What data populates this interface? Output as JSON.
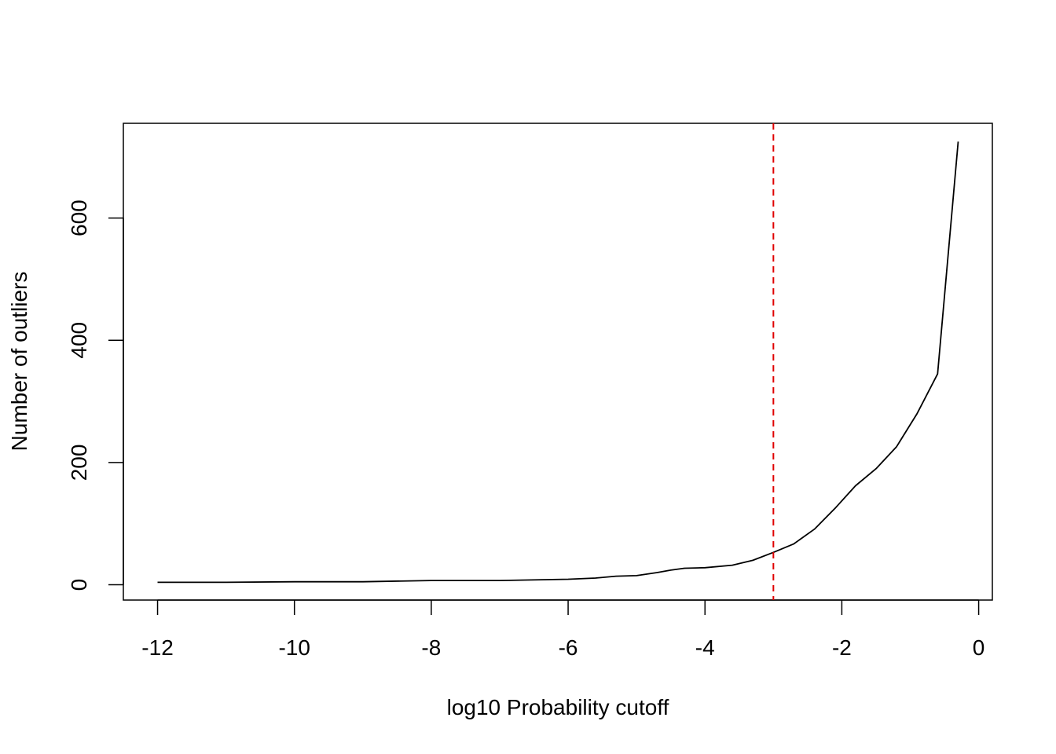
{
  "chart_data": {
    "type": "line",
    "xlabel": "log10 Probability cutoff",
    "ylabel": "Number of outliers",
    "xlim": [
      -12.5,
      0.2
    ],
    "ylim": [
      -25,
      755
    ],
    "x_ticks": [
      -12,
      -10,
      -8,
      -6,
      -4,
      -2,
      0
    ],
    "y_ticks": [
      0,
      200,
      400,
      600
    ],
    "x_tick_labels": [
      "-12",
      "-10",
      "-8",
      "-6",
      "-4",
      "-2",
      "0"
    ],
    "y_tick_labels": [
      "0",
      "200",
      "400",
      "600"
    ],
    "grid": false,
    "legend": "none",
    "series": [
      {
        "color": "#000000",
        "x": [
          -12,
          -11,
          -10,
          -9,
          -8,
          -7,
          -6,
          -5.6,
          -5.3,
          -5,
          -4.7,
          -4.5,
          -4.3,
          -4,
          -3.6,
          -3.3,
          -3,
          -2.7,
          -2.4,
          -2.1,
          -1.8,
          -1.5,
          -1.2,
          -0.9,
          -0.6,
          -0.3
        ],
        "y": [
          4,
          4,
          5,
          5,
          7,
          7,
          9,
          11,
          14,
          15,
          20,
          24,
          27,
          28,
          32,
          40,
          53,
          67,
          91,
          125,
          162,
          190,
          226,
          280,
          345,
          725
        ]
      }
    ],
    "reference_lines": [
      {
        "orientation": "vertical",
        "x": -3,
        "color": "#DF0000",
        "style": "dashed"
      }
    ]
  }
}
